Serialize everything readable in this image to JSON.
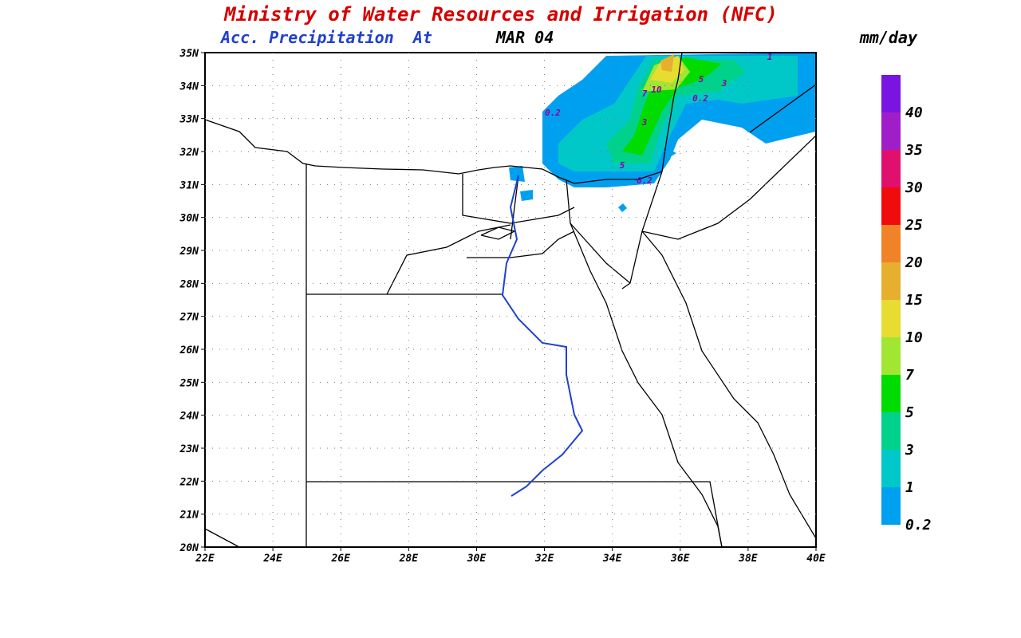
{
  "header": {
    "title": "Ministry of Water Resources and Irrigation (NFC)",
    "subtitle": "Acc. Precipitation  At",
    "date": "MAR 04",
    "units": "mm/day"
  },
  "map": {
    "lat_labels": [
      "35N",
      "34N",
      "33N",
      "32N",
      "31N",
      "30N",
      "29N",
      "28N",
      "27N",
      "26N",
      "25N",
      "24N",
      "23N",
      "22N",
      "21N",
      "20N"
    ],
    "lon_labels": [
      "22E",
      "24E",
      "26E",
      "28E",
      "30E",
      "32E",
      "34E",
      "36E",
      "38E",
      "40E"
    ],
    "contour_labels": [
      "0.2",
      "1",
      "7",
      "10",
      "5",
      "3",
      "0.2",
      "3",
      "5",
      "0.2"
    ]
  },
  "colorbar": {
    "bands": [
      {
        "label": "0.2",
        "color": "#00a0f0"
      },
      {
        "label": "1",
        "color": "#00c8c8"
      },
      {
        "label": "3",
        "color": "#00d28c"
      },
      {
        "label": "5",
        "color": "#00dc00"
      },
      {
        "label": "7",
        "color": "#a0e632"
      },
      {
        "label": "10",
        "color": "#e6dc32"
      },
      {
        "label": "15",
        "color": "#e6af2d"
      },
      {
        "label": "20",
        "color": "#f08228"
      },
      {
        "label": "25",
        "color": "#f00c0c"
      },
      {
        "label": "30",
        "color": "#e0106e"
      },
      {
        "label": "35",
        "color": "#a01ec8"
      },
      {
        "label": "40",
        "color": "#7a14e0"
      }
    ]
  }
}
